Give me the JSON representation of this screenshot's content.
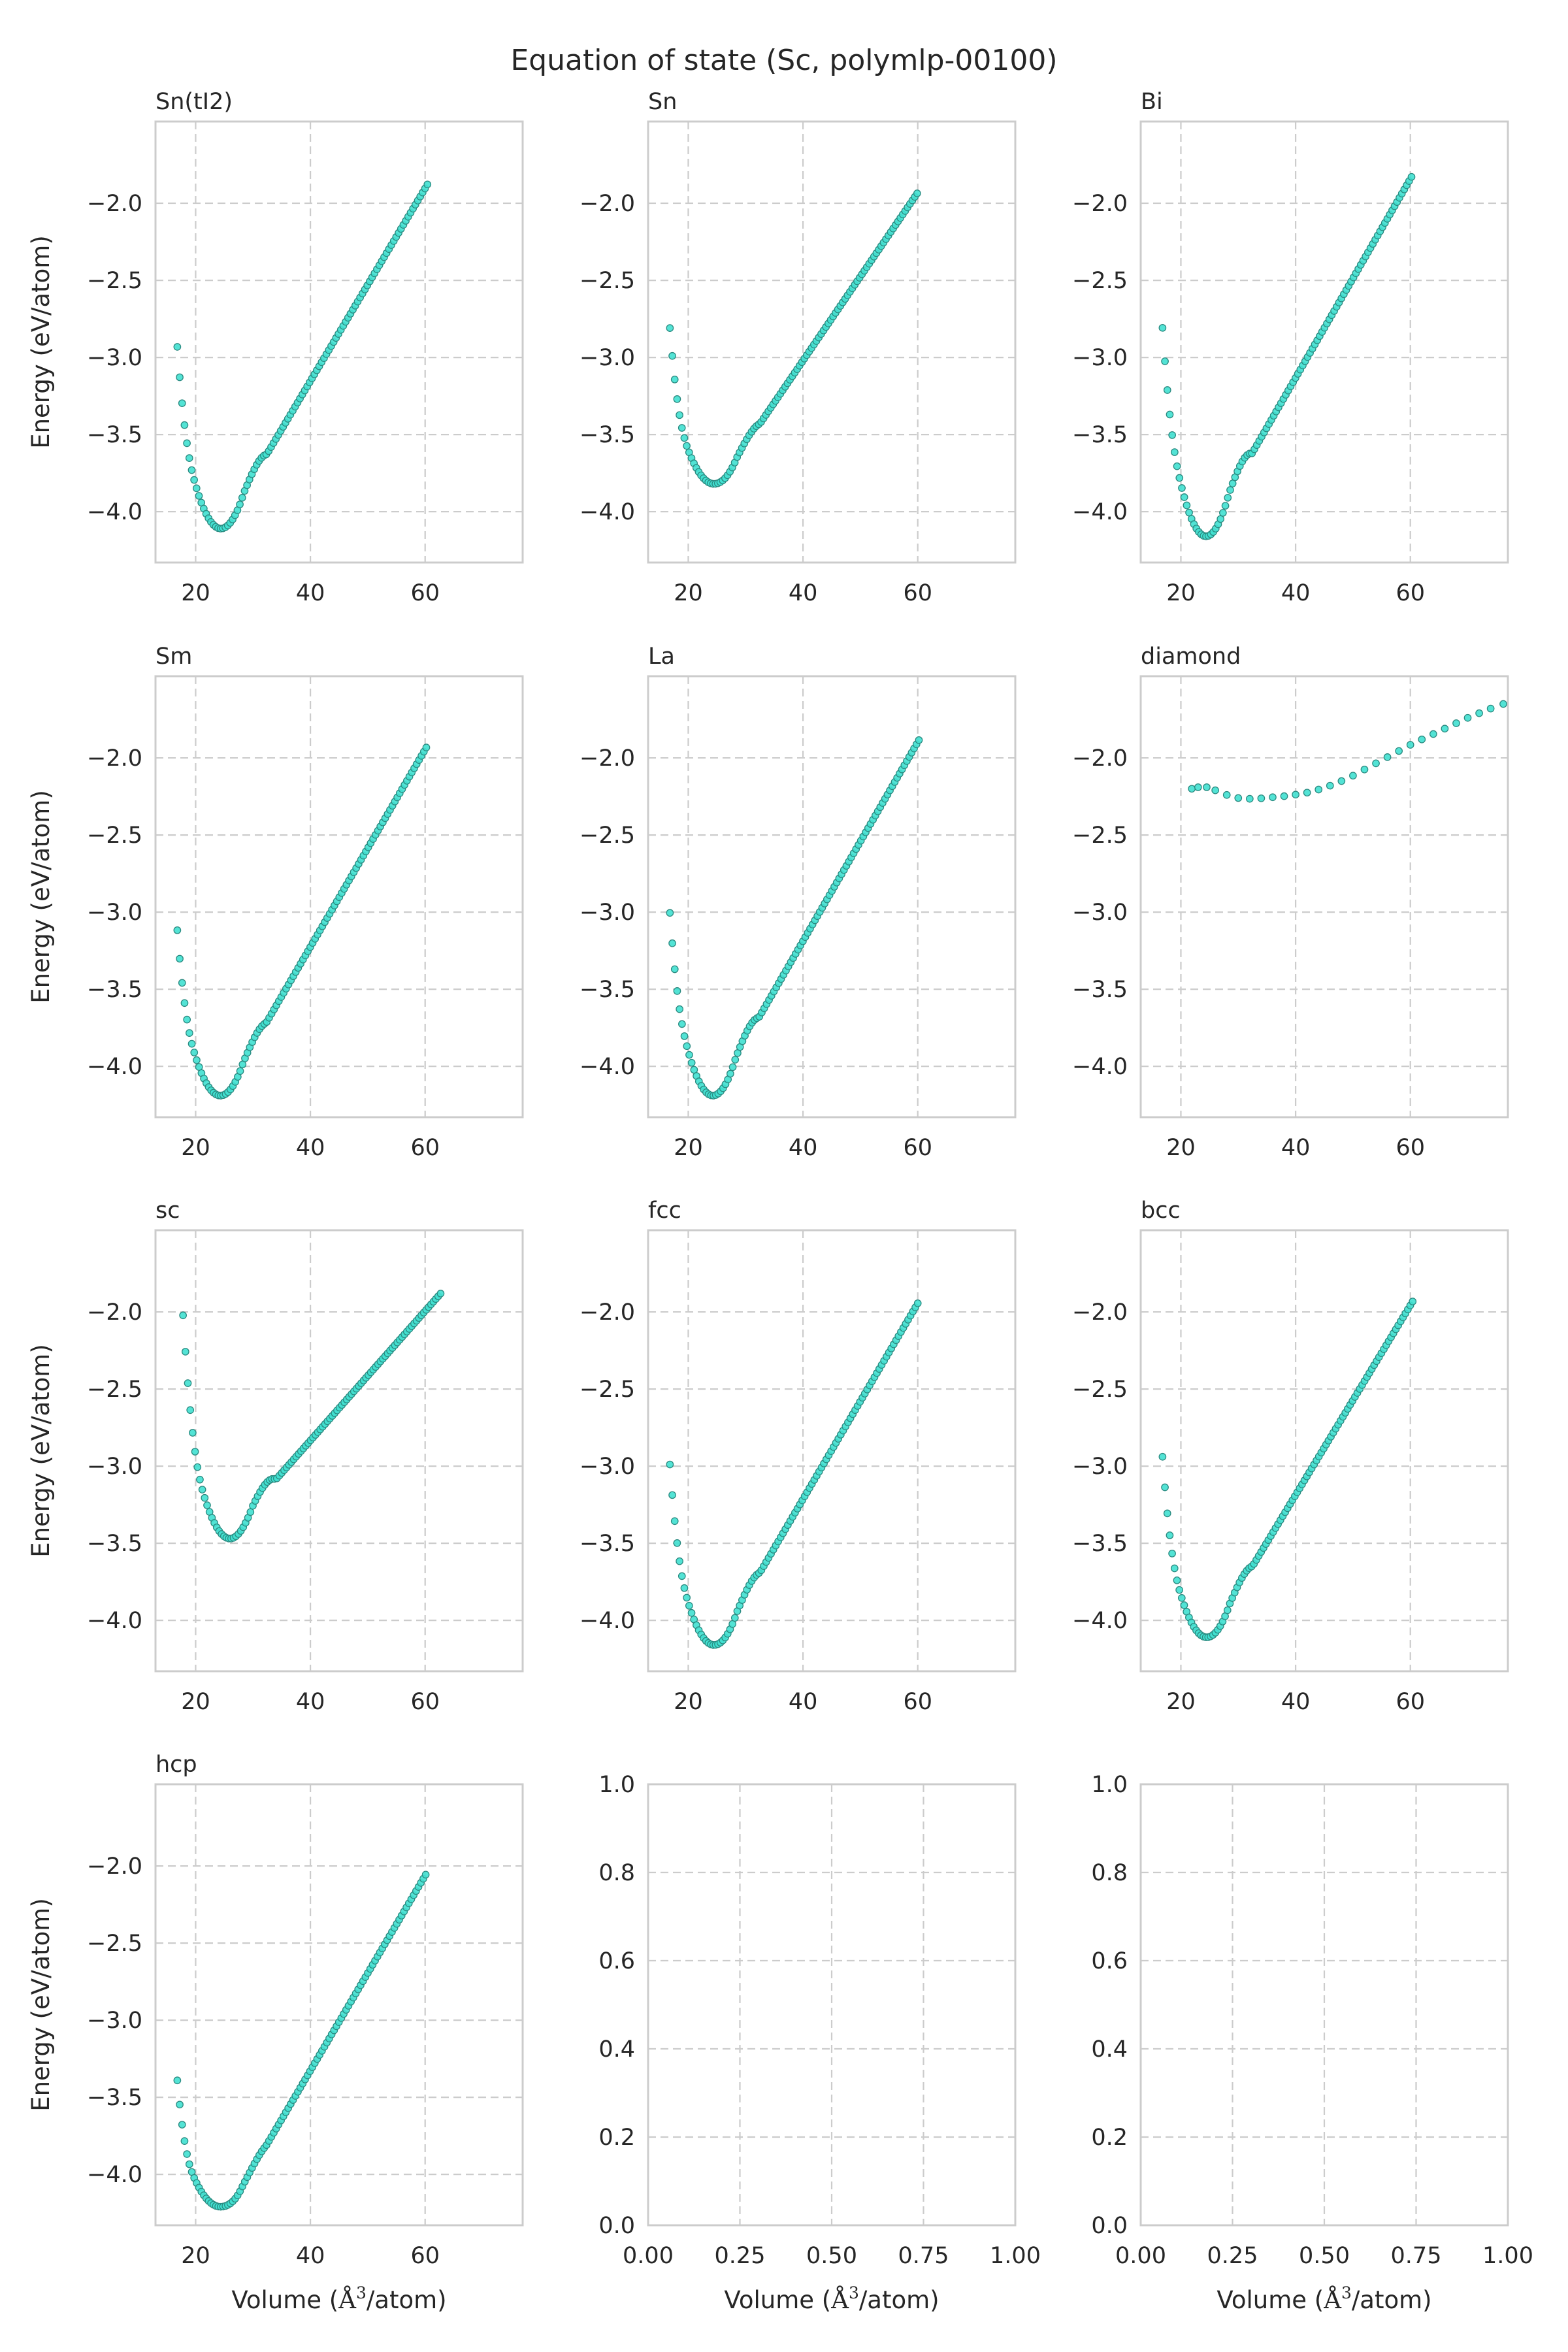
{
  "figure": {
    "title": "Equation of state (Sc, polymlp-00100)",
    "xlabel_text": "Volume (",
    "xlabel_unit_symbol": "Å",
    "xlabel_unit_power": "3",
    "xlabel_tail": "/atom)",
    "ylabel": "Energy (eV/atom)"
  },
  "colors": {
    "point_fill": "#40e0d0",
    "point_edge": "#2a8a80",
    "grid": "#cccccc",
    "frame": "#cccccc"
  },
  "chart_data": [
    {
      "type": "scatter",
      "title": "Sn(tI2)",
      "xlim": [
        13,
        77
      ],
      "ylim": [
        -4.33,
        -1.47
      ],
      "xticks": [
        "20",
        "40",
        "60"
      ],
      "xtick_values": [
        20,
        40,
        60
      ],
      "yticks": [
        "−4.0",
        "−3.5",
        "−3.0",
        "−2.5",
        "−2.0"
      ],
      "ytick_values": [
        -4.0,
        -3.5,
        -3.0,
        -2.5,
        -2.0
      ],
      "grid": true,
      "curve": {
        "v_min": 16.8,
        "v_max": 60.4,
        "v0": 24.4,
        "e0": -4.11,
        "k": 0.0145,
        "slope": 0.0625,
        "tail": 1.6
      }
    },
    {
      "type": "scatter",
      "title": "Sn",
      "xlim": [
        13,
        77
      ],
      "ylim": [
        -4.33,
        -1.47
      ],
      "xticks": [
        "20",
        "40",
        "60"
      ],
      "xtick_values": [
        20,
        40,
        60
      ],
      "yticks": [
        "−4.0",
        "−3.5",
        "−3.0",
        "−2.5",
        "−2.0"
      ],
      "ytick_values": [
        -4.0,
        -3.5,
        -3.0,
        -2.5,
        -2.0
      ],
      "grid": true,
      "curve": {
        "v_min": 16.8,
        "v_max": 59.9,
        "v0": 24.5,
        "e0": -3.82,
        "k": 0.0108,
        "slope": 0.0545,
        "tail": 1.6
      }
    },
    {
      "type": "scatter",
      "title": "Bi",
      "xlim": [
        13,
        77
      ],
      "ylim": [
        -4.33,
        -1.47
      ],
      "xticks": [
        "20",
        "40",
        "60"
      ],
      "xtick_values": [
        20,
        40,
        60
      ],
      "yticks": [
        "−4.0",
        "−3.5",
        "−3.0",
        "−2.5",
        "−2.0"
      ],
      "ytick_values": [
        -4.0,
        -3.5,
        -3.0,
        -2.5,
        -2.0
      ],
      "grid": true,
      "curve": {
        "v_min": 16.8,
        "v_max": 60.2,
        "v0": 24.4,
        "e0": -4.16,
        "k": 0.0175,
        "slope": 0.0645,
        "tail": 1.6
      }
    },
    {
      "type": "scatter",
      "title": "Sm",
      "xlim": [
        13,
        77
      ],
      "ylim": [
        -4.33,
        -1.47
      ],
      "xticks": [
        "20",
        "40",
        "60"
      ],
      "xtick_values": [
        20,
        40,
        60
      ],
      "yticks": [
        "−4.0",
        "−3.5",
        "−3.0",
        "−2.5",
        "−2.0"
      ],
      "ytick_values": [
        -4.0,
        -3.5,
        -3.0,
        -2.5,
        -2.0
      ],
      "grid": true,
      "curve": {
        "v_min": 16.8,
        "v_max": 60.2,
        "v0": 24.3,
        "e0": -4.19,
        "k": 0.0135,
        "slope": 0.064,
        "tail": 1.6
      }
    },
    {
      "type": "scatter",
      "title": "La",
      "xlim": [
        13,
        77
      ],
      "ylim": [
        -4.33,
        -1.47
      ],
      "xticks": [
        "20",
        "40",
        "60"
      ],
      "xtick_values": [
        20,
        40,
        60
      ],
      "yticks": [
        "−4.0",
        "−3.5",
        "−3.0",
        "−2.5",
        "−2.0"
      ],
      "ytick_values": [
        -4.0,
        -3.5,
        -3.0,
        -2.5,
        -2.0
      ],
      "grid": true,
      "curve": {
        "v_min": 16.8,
        "v_max": 60.2,
        "v0": 24.3,
        "e0": -4.19,
        "k": 0.0155,
        "slope": 0.0645,
        "tail": 1.6
      }
    },
    {
      "type": "scatter",
      "title": "diamond",
      "xlim": [
        13,
        77
      ],
      "ylim": [
        -4.33,
        -1.47
      ],
      "xticks": [
        "20",
        "40",
        "60"
      ],
      "xtick_values": [
        20,
        40,
        60
      ],
      "yticks": [
        "−4.0",
        "−3.5",
        "−3.0",
        "−2.5",
        "−2.0"
      ],
      "ytick_values": [
        -4.0,
        -3.5,
        -3.0,
        -2.5,
        -2.0
      ],
      "grid": true,
      "points": [
        [
          21.9,
          -2.2
        ],
        [
          23.0,
          -2.19
        ],
        [
          24.5,
          -2.19
        ],
        [
          26.0,
          -2.21
        ],
        [
          28.0,
          -2.24
        ],
        [
          30.0,
          -2.26
        ],
        [
          32.0,
          -2.265
        ],
        [
          34.0,
          -2.262
        ],
        [
          36.0,
          -2.255
        ],
        [
          38.0,
          -2.248
        ],
        [
          40.0,
          -2.238
        ],
        [
          42.0,
          -2.225
        ],
        [
          44.0,
          -2.205
        ],
        [
          46.0,
          -2.18
        ],
        [
          48.0,
          -2.15
        ],
        [
          50.0,
          -2.115
        ],
        [
          52.0,
          -2.075
        ],
        [
          54.0,
          -2.035
        ],
        [
          56.0,
          -1.995
        ],
        [
          58.0,
          -1.955
        ],
        [
          60.0,
          -1.915
        ],
        [
          62.0,
          -1.88
        ],
        [
          64.0,
          -1.845
        ],
        [
          66.0,
          -1.81
        ],
        [
          68.0,
          -1.775
        ],
        [
          70.0,
          -1.74
        ],
        [
          72.0,
          -1.71
        ],
        [
          74.0,
          -1.68
        ],
        [
          76.2,
          -1.65
        ]
      ]
    },
    {
      "type": "scatter",
      "title": "sc",
      "xlim": [
        13,
        77
      ],
      "ylim": [
        -4.33,
        -1.47
      ],
      "xticks": [
        "20",
        "40",
        "60"
      ],
      "xtick_values": [
        20,
        40,
        60
      ],
      "yticks": [
        "−4.0",
        "−3.5",
        "−3.0",
        "−2.5",
        "−2.0"
      ],
      "ytick_values": [
        -4.0,
        -3.5,
        -3.0,
        -2.5,
        -2.0
      ],
      "grid": true,
      "curve": {
        "v_min": 17.8,
        "v_max": 62.7,
        "v0": 26.0,
        "e0": -3.47,
        "k": 0.0135,
        "slope": 0.042,
        "tail": 1.6
      }
    },
    {
      "type": "scatter",
      "title": "fcc",
      "xlim": [
        13,
        77
      ],
      "ylim": [
        -4.33,
        -1.47
      ],
      "xticks": [
        "20",
        "40",
        "60"
      ],
      "xtick_values": [
        20,
        40,
        60
      ],
      "yticks": [
        "−4.0",
        "−3.5",
        "−3.0",
        "−2.5",
        "−2.0"
      ],
      "ytick_values": [
        -4.0,
        -3.5,
        -3.0,
        -2.5,
        -2.0
      ],
      "grid": true,
      "curve": {
        "v_min": 16.8,
        "v_max": 60.0,
        "v0": 24.5,
        "e0": -4.16,
        "k": 0.0135,
        "slope": 0.0635,
        "tail": 1.6
      }
    },
    {
      "type": "scatter",
      "title": "bcc",
      "xlim": [
        13,
        77
      ],
      "ylim": [
        -4.33,
        -1.47
      ],
      "xticks": [
        "20",
        "40",
        "60"
      ],
      "xtick_values": [
        20,
        40,
        60
      ],
      "yticks": [
        "−4.0",
        "−3.5",
        "−3.0",
        "−2.5",
        "−2.0"
      ],
      "ytick_values": [
        -4.0,
        -3.5,
        -3.0,
        -2.5,
        -2.0
      ],
      "grid": true,
      "curve": {
        "v_min": 16.8,
        "v_max": 60.4,
        "v0": 24.5,
        "e0": -4.11,
        "k": 0.0135,
        "slope": 0.0615,
        "tail": 1.6
      }
    },
    {
      "type": "scatter",
      "title": "hcp",
      "xlim": [
        13,
        77
      ],
      "ylim": [
        -4.33,
        -1.47
      ],
      "xticks": [
        "20",
        "40",
        "60"
      ],
      "xtick_values": [
        20,
        40,
        60
      ],
      "yticks": [
        "−4.0",
        "−3.5",
        "−3.0",
        "−2.5",
        "−2.0"
      ],
      "ytick_values": [
        -4.0,
        -3.5,
        -3.0,
        -2.5,
        -2.0
      ],
      "grid": true,
      "curve": {
        "v_min": 16.8,
        "v_max": 60.1,
        "v0": 24.3,
        "e0": -4.21,
        "k": 0.009,
        "slope": 0.0632,
        "tail": 1.6
      }
    },
    {
      "type": "scatter",
      "title": "",
      "xlim": [
        0,
        1
      ],
      "ylim": [
        0,
        1
      ],
      "xticks": [
        "0.00",
        "0.25",
        "0.50",
        "0.75",
        "1.00"
      ],
      "xtick_values": [
        0,
        0.25,
        0.5,
        0.75,
        1.0
      ],
      "yticks": [
        "0.0",
        "0.2",
        "0.4",
        "0.6",
        "0.8",
        "1.0"
      ],
      "ytick_values": [
        0,
        0.2,
        0.4,
        0.6,
        0.8,
        1.0
      ],
      "grid": true,
      "empty": true
    },
    {
      "type": "scatter",
      "title": "",
      "xlim": [
        0,
        1
      ],
      "ylim": [
        0,
        1
      ],
      "xticks": [
        "0.00",
        "0.25",
        "0.50",
        "0.75",
        "1.00"
      ],
      "xtick_values": [
        0,
        0.25,
        0.5,
        0.75,
        1.0
      ],
      "yticks": [
        "0.0",
        "0.2",
        "0.4",
        "0.6",
        "0.8",
        "1.0"
      ],
      "ytick_values": [
        0,
        0.2,
        0.4,
        0.6,
        0.8,
        1.0
      ],
      "grid": true,
      "empty": true
    }
  ]
}
